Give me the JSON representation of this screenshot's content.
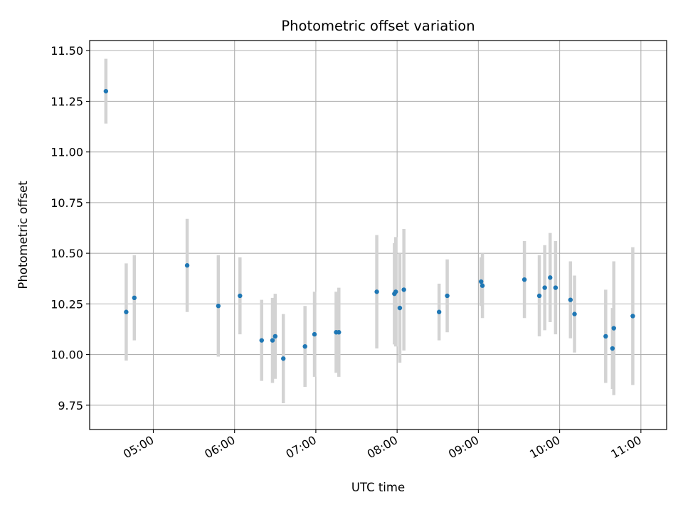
{
  "chart_data": {
    "type": "scatter",
    "title": "Photometric offset variation",
    "xlabel": "UTC time",
    "ylabel": "Photometric offset",
    "x_unit": "UTC hh:mm",
    "xlim": [
      "04:13",
      "11:19"
    ],
    "ylim": [
      9.63,
      11.55
    ],
    "grid": true,
    "marker_color": "#1f77b4",
    "errorbar_color": "#d3d3d3",
    "x_ticks": [
      "05:00",
      "06:00",
      "07:00",
      "08:00",
      "09:00",
      "10:00",
      "11:00"
    ],
    "y_ticks": [
      "9.75",
      "10.00",
      "10.25",
      "10.50",
      "10.75",
      "11.00",
      "11.25",
      "11.50"
    ],
    "points": [
      {
        "x": "04:25",
        "y": 11.3,
        "err": 0.16
      },
      {
        "x": "04:40",
        "y": 10.21,
        "err": 0.24
      },
      {
        "x": "04:46",
        "y": 10.28,
        "err": 0.21
      },
      {
        "x": "05:25",
        "y": 10.44,
        "err": 0.23
      },
      {
        "x": "05:48",
        "y": 10.24,
        "err": 0.25
      },
      {
        "x": "06:04",
        "y": 10.29,
        "err": 0.19
      },
      {
        "x": "06:20",
        "y": 10.07,
        "err": 0.2
      },
      {
        "x": "06:28",
        "y": 10.07,
        "err": 0.21
      },
      {
        "x": "06:30",
        "y": 10.09,
        "err": 0.21
      },
      {
        "x": "06:36",
        "y": 9.98,
        "err": 0.22
      },
      {
        "x": "06:52",
        "y": 10.04,
        "err": 0.2
      },
      {
        "x": "06:59",
        "y": 10.1,
        "err": 0.21
      },
      {
        "x": "07:15",
        "y": 10.11,
        "err": 0.2
      },
      {
        "x": "07:17",
        "y": 10.11,
        "err": 0.22
      },
      {
        "x": "07:45",
        "y": 10.31,
        "err": 0.28
      },
      {
        "x": "07:58",
        "y": 10.3,
        "err": 0.25
      },
      {
        "x": "07:59",
        "y": 10.31,
        "err": 0.27
      },
      {
        "x": "08:02",
        "y": 10.23,
        "err": 0.27
      },
      {
        "x": "08:05",
        "y": 10.32,
        "err": 0.3
      },
      {
        "x": "08:31",
        "y": 10.21,
        "err": 0.14
      },
      {
        "x": "08:37",
        "y": 10.29,
        "err": 0.18
      },
      {
        "x": "09:02",
        "y": 10.36,
        "err": 0.12
      },
      {
        "x": "09:03",
        "y": 10.34,
        "err": 0.16
      },
      {
        "x": "09:34",
        "y": 10.37,
        "err": 0.19
      },
      {
        "x": "09:45",
        "y": 10.29,
        "err": 0.2
      },
      {
        "x": "09:49",
        "y": 10.33,
        "err": 0.21
      },
      {
        "x": "09:53",
        "y": 10.38,
        "err": 0.22
      },
      {
        "x": "09:57",
        "y": 10.33,
        "err": 0.23
      },
      {
        "x": "10:08",
        "y": 10.27,
        "err": 0.19
      },
      {
        "x": "10:11",
        "y": 10.2,
        "err": 0.19
      },
      {
        "x": "10:34",
        "y": 10.09,
        "err": 0.23
      },
      {
        "x": "10:39",
        "y": 10.03,
        "err": 0.2
      },
      {
        "x": "10:40",
        "y": 10.13,
        "err": 0.33
      },
      {
        "x": "10:54",
        "y": 10.19,
        "err": 0.34
      }
    ]
  }
}
